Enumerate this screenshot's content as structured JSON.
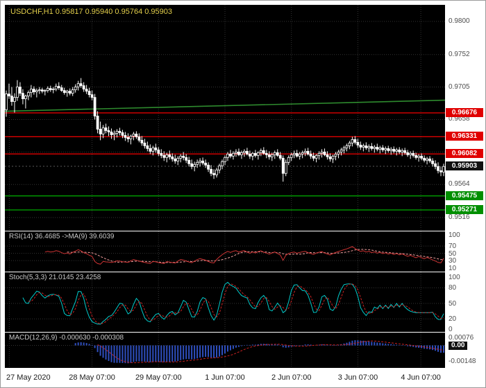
{
  "header": {
    "title_line": "USDCHF,H1 0.95817 0.95940 0.95764 0.95903"
  },
  "colors": {
    "panel_background": "#000000",
    "frame_background": "#ffffff",
    "title": "#e3cf4b",
    "grid": "#343434",
    "axis_text": "#4d4d4d",
    "candle": "#ffffff",
    "resistance": "#e00000",
    "support": "#008f00",
    "trend": "#2e8b2e",
    "current_badge": "#101010",
    "rsi": "#cd3333",
    "rsi_ma": "#f4a0a0",
    "stoch_main": "#00cccc",
    "stoch_signal": "#cc2222",
    "macd_hist": "#2f4fbf",
    "macd_signal": "#cc2222"
  },
  "chart_data": {
    "type": "candlestick",
    "symbol": "USDCHF",
    "timeframe": "H1",
    "last_ohlc": {
      "open": 0.95817,
      "high": 0.9594,
      "low": 0.95764,
      "close": 0.95903
    },
    "current_price": 0.95903,
    "price_axis": {
      "min": 0.9497,
      "max": 0.9824,
      "ticks": [
        {
          "label": "0.9800",
          "value": 0.98
        },
        {
          "label": "0.9752",
          "value": 0.9752
        },
        {
          "label": "0.9705",
          "value": 0.9705
        },
        {
          "label": "0.9658",
          "value": 0.9658
        },
        {
          "label": "0.9564",
          "value": 0.9564
        },
        {
          "label": "0.9516",
          "value": 0.9516
        }
      ],
      "grid_values": [
        0.98,
        0.9752,
        0.9705,
        0.9658,
        0.9611,
        0.9564,
        0.9516
      ]
    },
    "badges": [
      {
        "label": "0.96676",
        "value": 0.96676,
        "type": "resistance"
      },
      {
        "label": "0.96331",
        "value": 0.96331,
        "type": "resistance"
      },
      {
        "label": "0.96082",
        "value": 0.96082,
        "type": "resistance"
      },
      {
        "label": "0.95903",
        "value": 0.95903,
        "type": "current"
      },
      {
        "label": "0.95475",
        "value": 0.95475,
        "type": "support"
      },
      {
        "label": "0.95271",
        "value": 0.95271,
        "type": "support"
      }
    ],
    "levels": [
      {
        "price": 0.96676,
        "type": "resistance"
      },
      {
        "price": 0.96331,
        "type": "resistance"
      },
      {
        "price": 0.96082,
        "type": "resistance"
      },
      {
        "price": 0.95475,
        "type": "support"
      },
      {
        "price": 0.95271,
        "type": "support"
      }
    ],
    "trendline": {
      "price_start": 0.967,
      "price_end": 0.9686
    },
    "time_axis": {
      "labels": [
        {
          "text": "27 May 2020",
          "pos": 0.01
        },
        {
          "text": "28 May 07:00",
          "pos": 0.198
        },
        {
          "text": "29 May 07:00",
          "pos": 0.349
        },
        {
          "text": "1 Jun 07:00",
          "pos": 0.5
        },
        {
          "text": "2 Jun 07:00",
          "pos": 0.651
        },
        {
          "text": "3 Jun 07:00",
          "pos": 0.802
        },
        {
          "text": "4 Jun 07:00",
          "pos": 0.945
        }
      ]
    },
    "indicators": {
      "rsi": {
        "label": "RSI(14) 36.4685  ->MA(9) 39.6039",
        "period": 14,
        "value": 36.4685,
        "ma_period": 9,
        "ma_value": 39.6039,
        "range": [
          0,
          110
        ],
        "ticks": [
          {
            "label": "100",
            "value": 100
          },
          {
            "label": "70",
            "value": 70
          },
          {
            "label": "50",
            "value": 50
          },
          {
            "label": "30",
            "value": 30
          },
          {
            "label": "10",
            "value": 10
          }
        ],
        "grid": [
          70,
          50,
          30
        ]
      },
      "stoch": {
        "label": "Stoch(5,3,3) 21.0145 23.4258",
        "k_value": 21.0145,
        "d_value": 23.4258,
        "range": [
          -5,
          110
        ],
        "ticks": [
          {
            "label": "100",
            "value": 100
          },
          {
            "label": "80",
            "value": 80
          },
          {
            "label": "50",
            "value": 50
          },
          {
            "label": "20",
            "value": 20
          },
          {
            "label": "0",
            "value": 0
          }
        ],
        "grid": [
          80,
          50,
          20
        ]
      },
      "macd": {
        "label": "MACD(12,26,9) -0.000630 -0.000308",
        "macd_value": -0.00063,
        "signal_value": -0.000308,
        "range": [
          -0.0021,
          0.0012
        ],
        "ticks": [
          {
            "label": "0.00076",
            "value": 0.00076
          },
          {
            "label": "0.00",
            "value": 0,
            "badge": true
          },
          {
            "label": "-0.00148",
            "value": -0.00148
          }
        ],
        "grid": [
          0
        ]
      }
    },
    "candles": [
      [
        0.9672,
        0.97,
        0.9662,
        0.9695
      ],
      [
        0.9695,
        0.971,
        0.9688,
        0.9692
      ],
      [
        0.9692,
        0.9705,
        0.9678,
        0.9684
      ],
      [
        0.9684,
        0.9696,
        0.9668,
        0.969
      ],
      [
        0.969,
        0.9715,
        0.9685,
        0.9705
      ],
      [
        0.9705,
        0.9712,
        0.9692,
        0.9696
      ],
      [
        0.9696,
        0.9702,
        0.968,
        0.9688
      ],
      [
        0.9688,
        0.9694,
        0.9674,
        0.9692
      ],
      [
        0.9692,
        0.97,
        0.9686,
        0.9697
      ],
      [
        0.9697,
        0.9708,
        0.969,
        0.9702
      ],
      [
        0.9702,
        0.9706,
        0.9694,
        0.9698
      ],
      [
        0.9698,
        0.9703,
        0.969,
        0.97
      ],
      [
        0.97,
        0.9705,
        0.9695,
        0.9701
      ],
      [
        0.9701,
        0.9704,
        0.9696,
        0.9699
      ],
      [
        0.9699,
        0.9702,
        0.9693,
        0.97
      ],
      [
        0.97,
        0.9706,
        0.9697,
        0.9703
      ],
      [
        0.9703,
        0.9707,
        0.9698,
        0.9701
      ],
      [
        0.9701,
        0.9705,
        0.9696,
        0.9702
      ],
      [
        0.9702,
        0.971,
        0.9699,
        0.9706
      ],
      [
        0.9706,
        0.9712,
        0.9701,
        0.9704
      ],
      [
        0.9704,
        0.9708,
        0.9698,
        0.97
      ],
      [
        0.97,
        0.9704,
        0.9694,
        0.9697
      ],
      [
        0.9697,
        0.9701,
        0.9691,
        0.9699
      ],
      [
        0.9699,
        0.9703,
        0.9693,
        0.9696
      ],
      [
        0.9696,
        0.9705,
        0.9692,
        0.9701
      ],
      [
        0.9701,
        0.9709,
        0.9697,
        0.9705
      ],
      [
        0.9705,
        0.9714,
        0.97,
        0.971
      ],
      [
        0.971,
        0.9718,
        0.9704,
        0.9707
      ],
      [
        0.9707,
        0.9712,
        0.9698,
        0.9702
      ],
      [
        0.9702,
        0.9708,
        0.9695,
        0.9699
      ],
      [
        0.9699,
        0.9704,
        0.969,
        0.9694
      ],
      [
        0.9694,
        0.97,
        0.9686,
        0.969
      ],
      [
        0.969,
        0.9695,
        0.9658,
        0.9663
      ],
      [
        0.9663,
        0.967,
        0.9638,
        0.9644
      ],
      [
        0.9644,
        0.9655,
        0.9628,
        0.9637
      ],
      [
        0.9637,
        0.965,
        0.9631,
        0.9646
      ],
      [
        0.9646,
        0.9652,
        0.9638,
        0.9642
      ],
      [
        0.9642,
        0.9648,
        0.9634,
        0.964
      ],
      [
        0.964,
        0.9645,
        0.963,
        0.9636
      ],
      [
        0.9636,
        0.9642,
        0.9628,
        0.9638
      ],
      [
        0.9638,
        0.9644,
        0.9632,
        0.9641
      ],
      [
        0.9641,
        0.9646,
        0.9635,
        0.9639
      ],
      [
        0.9639,
        0.9643,
        0.9631,
        0.9635
      ],
      [
        0.9635,
        0.964,
        0.9627,
        0.9632
      ],
      [
        0.9632,
        0.9638,
        0.9625,
        0.963
      ],
      [
        0.963,
        0.9636,
        0.9622,
        0.9634
      ],
      [
        0.9634,
        0.964,
        0.9628,
        0.9637
      ],
      [
        0.9637,
        0.9641,
        0.963,
        0.9633
      ],
      [
        0.9633,
        0.9638,
        0.9625,
        0.9628
      ],
      [
        0.9628,
        0.9634,
        0.962,
        0.9624
      ],
      [
        0.9624,
        0.963,
        0.9616,
        0.962
      ],
      [
        0.962,
        0.9626,
        0.9612,
        0.9616
      ],
      [
        0.9616,
        0.9622,
        0.9608,
        0.9612
      ],
      [
        0.9612,
        0.962,
        0.9606,
        0.9617
      ],
      [
        0.9617,
        0.9623,
        0.961,
        0.9614
      ],
      [
        0.9614,
        0.9618,
        0.9605,
        0.9609
      ],
      [
        0.9609,
        0.9615,
        0.9602,
        0.9606
      ],
      [
        0.9606,
        0.9612,
        0.9598,
        0.9603
      ],
      [
        0.9603,
        0.961,
        0.9596,
        0.9607
      ],
      [
        0.9607,
        0.9613,
        0.96,
        0.9604
      ],
      [
        0.9604,
        0.9609,
        0.9597,
        0.9601
      ],
      [
        0.9601,
        0.9607,
        0.9594,
        0.9598
      ],
      [
        0.9598,
        0.9605,
        0.9592,
        0.9602
      ],
      [
        0.9602,
        0.9608,
        0.9596,
        0.9605
      ],
      [
        0.9605,
        0.9611,
        0.9599,
        0.9603
      ],
      [
        0.9603,
        0.9608,
        0.9595,
        0.9599
      ],
      [
        0.9599,
        0.9604,
        0.959,
        0.9594
      ],
      [
        0.9594,
        0.96,
        0.9586,
        0.959
      ],
      [
        0.959,
        0.9597,
        0.9583,
        0.9593
      ],
      [
        0.9593,
        0.96,
        0.9588,
        0.9596
      ],
      [
        0.9596,
        0.9602,
        0.959,
        0.9598
      ],
      [
        0.9598,
        0.9603,
        0.9592,
        0.9595
      ],
      [
        0.9595,
        0.96,
        0.9588,
        0.9592
      ],
      [
        0.9592,
        0.9596,
        0.9582,
        0.9586
      ],
      [
        0.9586,
        0.9592,
        0.9576,
        0.958
      ],
      [
        0.958,
        0.9586,
        0.9572,
        0.9578
      ],
      [
        0.9578,
        0.9588,
        0.9574,
        0.9585
      ],
      [
        0.9585,
        0.9594,
        0.958,
        0.9591
      ],
      [
        0.9591,
        0.96,
        0.9586,
        0.9597
      ],
      [
        0.9597,
        0.9606,
        0.9592,
        0.9603
      ],
      [
        0.9603,
        0.9611,
        0.9598,
        0.9608
      ],
      [
        0.9608,
        0.9614,
        0.9602,
        0.9605
      ],
      [
        0.9605,
        0.9612,
        0.96,
        0.9609
      ],
      [
        0.9609,
        0.9615,
        0.9604,
        0.9611
      ],
      [
        0.9611,
        0.9616,
        0.9605,
        0.9607
      ],
      [
        0.9607,
        0.9613,
        0.9601,
        0.961
      ],
      [
        0.961,
        0.9615,
        0.9604,
        0.9612
      ],
      [
        0.9612,
        0.9617,
        0.9606,
        0.9608
      ],
      [
        0.9608,
        0.9613,
        0.9601,
        0.9605
      ],
      [
        0.9605,
        0.9611,
        0.9599,
        0.9609
      ],
      [
        0.9609,
        0.9614,
        0.9603,
        0.9606
      ],
      [
        0.9606,
        0.9612,
        0.96,
        0.961
      ],
      [
        0.961,
        0.9616,
        0.9605,
        0.9613
      ],
      [
        0.9613,
        0.9618,
        0.9607,
        0.9609
      ],
      [
        0.9609,
        0.9614,
        0.9602,
        0.9607
      ],
      [
        0.9607,
        0.9612,
        0.96,
        0.9604
      ],
      [
        0.9604,
        0.961,
        0.9598,
        0.9607
      ],
      [
        0.9607,
        0.9613,
        0.9601,
        0.961
      ],
      [
        0.961,
        0.9615,
        0.9604,
        0.9606
      ],
      [
        0.9606,
        0.9611,
        0.9599,
        0.9602
      ],
      [
        0.9602,
        0.9606,
        0.9568,
        0.958
      ],
      [
        0.958,
        0.96,
        0.9576,
        0.9596
      ],
      [
        0.9596,
        0.9606,
        0.9592,
        0.9603
      ],
      [
        0.9603,
        0.961,
        0.9598,
        0.9607
      ],
      [
        0.9607,
        0.9613,
        0.9602,
        0.9609
      ],
      [
        0.9609,
        0.9614,
        0.9603,
        0.9605
      ],
      [
        0.9605,
        0.9611,
        0.96,
        0.9608
      ],
      [
        0.9608,
        0.9613,
        0.9602,
        0.961
      ],
      [
        0.961,
        0.9616,
        0.9605,
        0.9612
      ],
      [
        0.9612,
        0.9617,
        0.9606,
        0.9608
      ],
      [
        0.9608,
        0.9613,
        0.9601,
        0.9605
      ],
      [
        0.9605,
        0.961,
        0.9598,
        0.9602
      ],
      [
        0.9602,
        0.9608,
        0.9596,
        0.9606
      ],
      [
        0.9606,
        0.9612,
        0.96,
        0.9609
      ],
      [
        0.9609,
        0.9615,
        0.9603,
        0.9611
      ],
      [
        0.9611,
        0.9616,
        0.9605,
        0.9607
      ],
      [
        0.9607,
        0.9612,
        0.96,
        0.9604
      ],
      [
        0.9604,
        0.9609,
        0.9597,
        0.9601
      ],
      [
        0.9601,
        0.9607,
        0.9595,
        0.9605
      ],
      [
        0.9605,
        0.9611,
        0.9599,
        0.9608
      ],
      [
        0.9608,
        0.9614,
        0.9602,
        0.9611
      ],
      [
        0.9611,
        0.9617,
        0.9606,
        0.9614
      ],
      [
        0.9614,
        0.962,
        0.9609,
        0.9617
      ],
      [
        0.9617,
        0.9623,
        0.9612,
        0.962
      ],
      [
        0.962,
        0.9627,
        0.9615,
        0.9624
      ],
      [
        0.9624,
        0.9633,
        0.9619,
        0.9629
      ],
      [
        0.9629,
        0.9634,
        0.9622,
        0.9625
      ],
      [
        0.9625,
        0.963,
        0.9617,
        0.9621
      ],
      [
        0.9621,
        0.9626,
        0.9614,
        0.9618
      ],
      [
        0.9618,
        0.9623,
        0.9612,
        0.962
      ],
      [
        0.962,
        0.9625,
        0.9614,
        0.9617
      ],
      [
        0.9617,
        0.9622,
        0.9611,
        0.9619
      ],
      [
        0.9619,
        0.9624,
        0.9613,
        0.9616
      ],
      [
        0.9616,
        0.9621,
        0.961,
        0.9618
      ],
      [
        0.9618,
        0.9623,
        0.9612,
        0.9615
      ],
      [
        0.9615,
        0.962,
        0.9609,
        0.9617
      ],
      [
        0.9617,
        0.9621,
        0.9611,
        0.9614
      ],
      [
        0.9614,
        0.9619,
        0.9608,
        0.9616
      ],
      [
        0.9616,
        0.962,
        0.961,
        0.9613
      ],
      [
        0.9613,
        0.9618,
        0.9607,
        0.9615
      ],
      [
        0.9615,
        0.9619,
        0.9609,
        0.9612
      ],
      [
        0.9612,
        0.9617,
        0.9606,
        0.9614
      ],
      [
        0.9614,
        0.9618,
        0.9608,
        0.9611
      ],
      [
        0.9611,
        0.9616,
        0.9605,
        0.9613
      ],
      [
        0.9613,
        0.9617,
        0.9607,
        0.961
      ],
      [
        0.961,
        0.9614,
        0.9604,
        0.9607
      ],
      [
        0.9607,
        0.9612,
        0.9601,
        0.9609
      ],
      [
        0.9609,
        0.9613,
        0.9603,
        0.9606
      ],
      [
        0.9606,
        0.961,
        0.96,
        0.9603
      ],
      [
        0.9603,
        0.9608,
        0.9597,
        0.9605
      ],
      [
        0.9605,
        0.9609,
        0.9599,
        0.9602
      ],
      [
        0.9602,
        0.9606,
        0.9596,
        0.9599
      ],
      [
        0.9599,
        0.9604,
        0.9593,
        0.9601
      ],
      [
        0.9601,
        0.9605,
        0.9595,
        0.9598
      ],
      [
        0.9598,
        0.9602,
        0.959,
        0.9594
      ],
      [
        0.9594,
        0.9599,
        0.9586,
        0.959
      ],
      [
        0.959,
        0.9596,
        0.958,
        0.9584
      ],
      [
        0.9584,
        0.959,
        0.9576,
        0.9582
      ],
      [
        0.9582,
        0.9594,
        0.9576,
        0.959
      ]
    ]
  }
}
